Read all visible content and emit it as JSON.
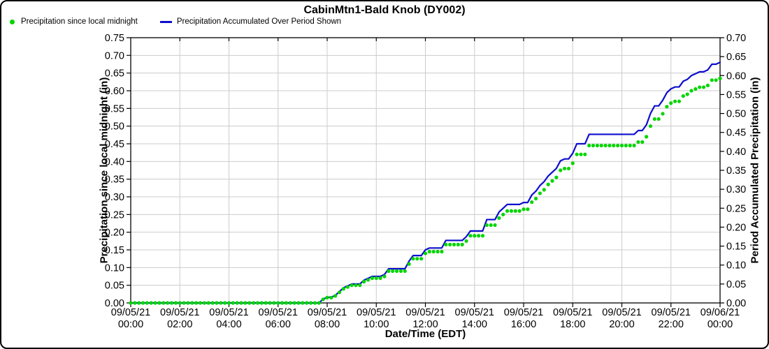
{
  "window": {
    "background": "#ffffff",
    "border_color": "#000000"
  },
  "chart_data": {
    "type": "line",
    "title": "CabinMtn1-Bald Knob (DY002)",
    "xlabel": "Date/Time (EDT)",
    "grid": true,
    "grid_color": "#cccccc",
    "legend_position": "top-left",
    "x_range_hours": [
      0,
      24
    ],
    "x_sample_step_minutes": 10,
    "x_tick_labels": [
      [
        "09/05/21",
        "00:00"
      ],
      [
        "09/05/21",
        "02:00"
      ],
      [
        "09/05/21",
        "04:00"
      ],
      [
        "09/05/21",
        "06:00"
      ],
      [
        "09/05/21",
        "08:00"
      ],
      [
        "09/05/21",
        "10:00"
      ],
      [
        "09/05/21",
        "12:00"
      ],
      [
        "09/05/21",
        "14:00"
      ],
      [
        "09/05/21",
        "16:00"
      ],
      [
        "09/05/21",
        "18:00"
      ],
      [
        "09/05/21",
        "20:00"
      ],
      [
        "09/05/21",
        "22:00"
      ],
      [
        "09/06/21",
        "00:00"
      ]
    ],
    "left_axis": {
      "label": "Precipitation since local midnight (in)",
      "min": 0.0,
      "max": 0.75,
      "tick_step": 0.05,
      "tick_labels": [
        "0.00",
        "0.05",
        "0.10",
        "0.15",
        "0.20",
        "0.25",
        "0.30",
        "0.35",
        "0.40",
        "0.45",
        "0.50",
        "0.55",
        "0.60",
        "0.65",
        "0.70",
        "0.75"
      ]
    },
    "right_axis": {
      "label": "Period Accumulated Precipitation (in)",
      "min": 0.0,
      "max": 0.7,
      "tick_step": 0.05,
      "tick_labels": [
        "0.00",
        "0.05",
        "0.10",
        "0.15",
        "0.20",
        "0.25",
        "0.30",
        "0.35",
        "0.40",
        "0.45",
        "0.50",
        "0.55",
        "0.60",
        "0.65",
        "0.70"
      ]
    },
    "series": [
      {
        "name": "Precipitation since local midnight",
        "style": "dots",
        "marker": "circle",
        "color": "#00d500",
        "axis": "left"
      },
      {
        "name": "Precipitation Accumulated Over Period Shown",
        "style": "line",
        "color": "#0d0dcf",
        "axis": "right"
      }
    ],
    "values_shared_by_both_series": true,
    "values": [
      0,
      0,
      0,
      0,
      0,
      0,
      0,
      0,
      0,
      0,
      0,
      0,
      0,
      0,
      0,
      0,
      0,
      0,
      0,
      0,
      0,
      0,
      0,
      0,
      0,
      0,
      0,
      0,
      0,
      0,
      0,
      0,
      0,
      0,
      0,
      0,
      0,
      0,
      0,
      0,
      0,
      0,
      0,
      0,
      0,
      0,
      0,
      0.01,
      0.015,
      0.015,
      0.02,
      0.03,
      0.04,
      0.045,
      0.05,
      0.05,
      0.05,
      0.06,
      0.065,
      0.07,
      0.07,
      0.07,
      0.075,
      0.09,
      0.09,
      0.09,
      0.09,
      0.09,
      0.11,
      0.125,
      0.125,
      0.125,
      0.14,
      0.145,
      0.145,
      0.145,
      0.145,
      0.165,
      0.165,
      0.165,
      0.165,
      0.165,
      0.175,
      0.19,
      0.19,
      0.19,
      0.19,
      0.22,
      0.22,
      0.22,
      0.24,
      0.25,
      0.26,
      0.26,
      0.26,
      0.26,
      0.265,
      0.265,
      0.285,
      0.295,
      0.31,
      0.32,
      0.335,
      0.345,
      0.355,
      0.375,
      0.38,
      0.38,
      0.395,
      0.42,
      0.42,
      0.42,
      0.445,
      0.445,
      0.445,
      0.445,
      0.445,
      0.445,
      0.445,
      0.445,
      0.445,
      0.445,
      0.445,
      0.445,
      0.455,
      0.455,
      0.47,
      0.5,
      0.52,
      0.52,
      0.535,
      0.555,
      0.565,
      0.57,
      0.57,
      0.585,
      0.59,
      0.6,
      0.605,
      0.61,
      0.61,
      0.615,
      0.63,
      0.63,
      0.635
    ]
  }
}
